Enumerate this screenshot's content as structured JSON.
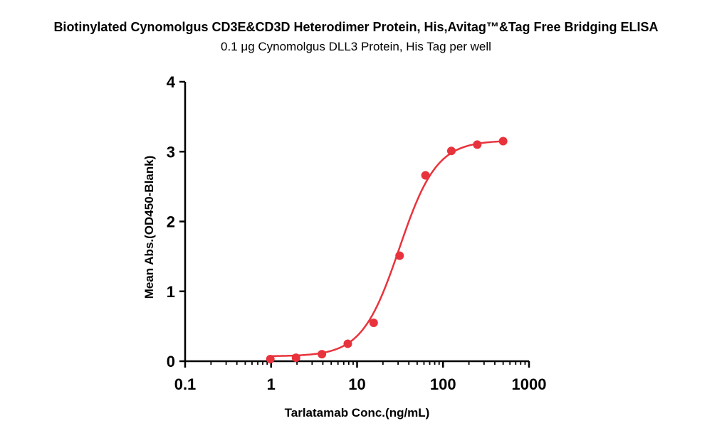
{
  "chart_data": {
    "type": "scatter",
    "title": "Biotinylated Cynomolgus CD3E&CD3D Heterodimer Protein, His,Avitag™&Tag Free Bridging ELISA",
    "subtitle": "0.1 μg Cynomolgus DLL3 Protein, His Tag per well",
    "xlabel": "Tarlatamab Conc.(ng/mL)",
    "ylabel": "Mean Abs.(OD450-Blank)",
    "x_scale": "log",
    "xlim": [
      0.1,
      1000
    ],
    "ylim": [
      0,
      4
    ],
    "x_ticks": [
      "0.1",
      "1",
      "10",
      "100",
      "1000"
    ],
    "y_ticks": [
      "0",
      "1",
      "2",
      "3",
      "4"
    ],
    "grid": false,
    "legend": "none",
    "series": [
      {
        "color": "#e8333c",
        "x": [
          0.98,
          1.95,
          3.9,
          7.8,
          15.6,
          31.25,
          62.5,
          125,
          250,
          500
        ],
        "y": [
          0.03,
          0.05,
          0.1,
          0.25,
          0.55,
          1.51,
          2.66,
          3.01,
          3.1,
          3.15
        ]
      }
    ],
    "fit_curve": {
      "model": "4PL",
      "bottom": 0.07,
      "top": 3.16,
      "ec50": 31,
      "hill": 2.0,
      "color": "#e8333c"
    }
  }
}
